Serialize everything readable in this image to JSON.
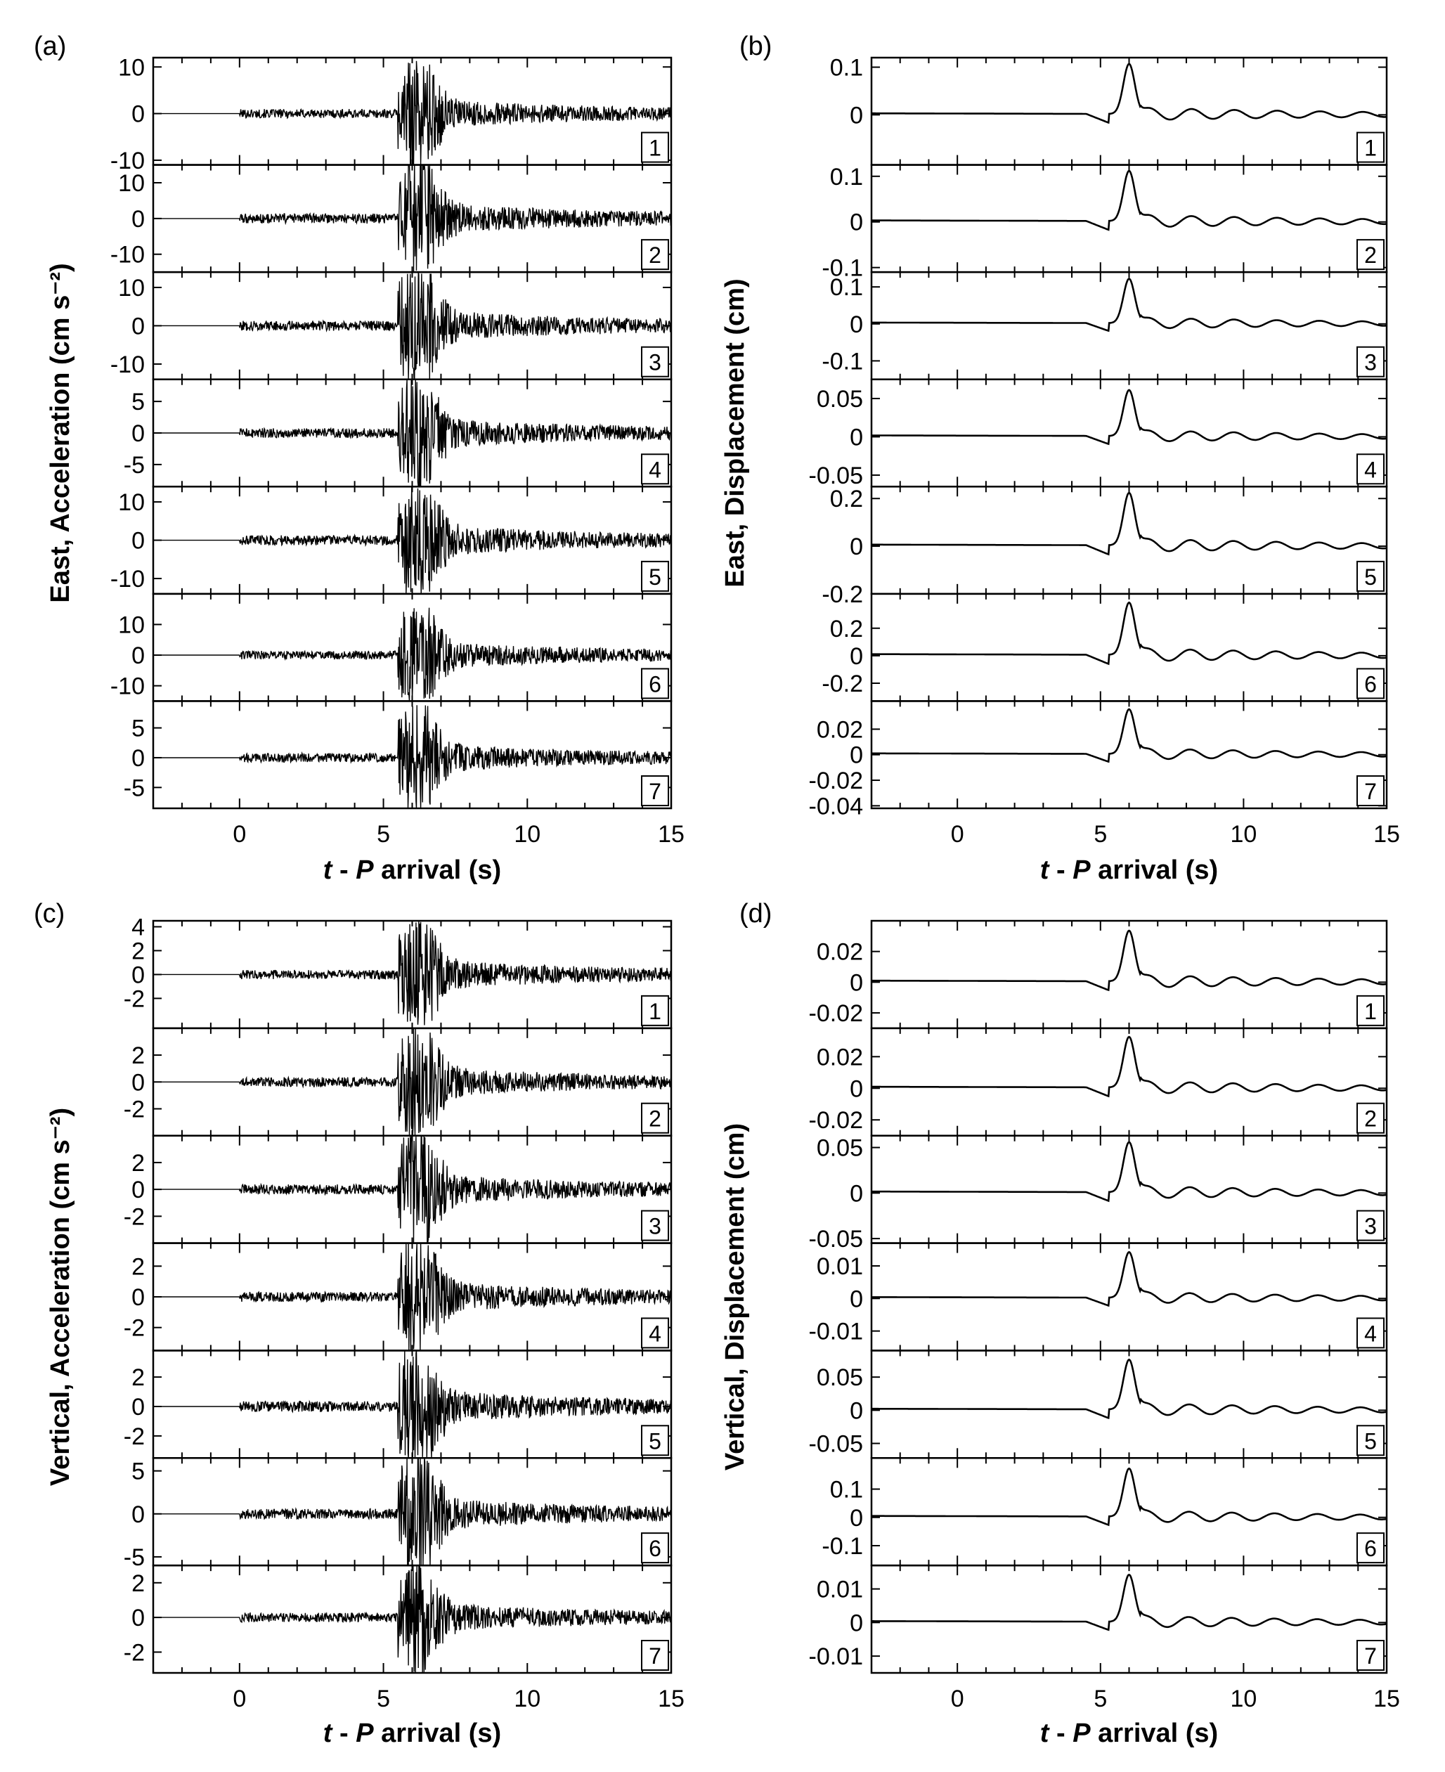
{
  "chart_data": [
    {
      "panel_label": "(a)",
      "type": "line",
      "xlabel_prefix": "t",
      "xlabel_mid": " - ",
      "xlabel_var": "P",
      "xlabel_suffix": " arrival (s)",
      "ylabel": "East, Acceleration (cm s⁻²)",
      "xlim": [
        -3,
        15
      ],
      "xticks": [
        0,
        5,
        10,
        15
      ],
      "onset": 0,
      "kind": "acc",
      "traces": [
        {
          "id": "1",
          "ylim": [
            -11,
            12
          ],
          "yticks": [
            10,
            0,
            -10
          ],
          "ytick_labels": [
            "10",
            "0",
            "-10"
          ],
          "peak": 9
        },
        {
          "id": "2",
          "ylim": [
            -15,
            15
          ],
          "yticks": [
            10,
            0,
            -10
          ],
          "ytick_labels": [
            "10",
            "0",
            "-10"
          ],
          "peak": 13
        },
        {
          "id": "3",
          "ylim": [
            -14,
            14
          ],
          "yticks": [
            10,
            0,
            -10
          ],
          "ytick_labels": [
            "10",
            "0",
            "-10"
          ],
          "peak": 12
        },
        {
          "id": "4",
          "ylim": [
            -8.5,
            8.5
          ],
          "yticks": [
            5,
            0,
            -5
          ],
          "ytick_labels": [
            "5",
            "0",
            "-5"
          ],
          "peak": 7
        },
        {
          "id": "5",
          "ylim": [
            -14,
            14
          ],
          "yticks": [
            10,
            0,
            -10
          ],
          "ytick_labels": [
            "10",
            "0",
            "-10"
          ],
          "peak": 12
        },
        {
          "id": "6",
          "ylim": [
            -15,
            20
          ],
          "yticks": [
            10,
            0,
            -10
          ],
          "ytick_labels": [
            "10",
            "0",
            "-10"
          ],
          "peak": 13
        },
        {
          "id": "7",
          "ylim": [
            -8.5,
            9.5
          ],
          "yticks": [
            5,
            0,
            -5
          ],
          "ytick_labels": [
            "5",
            "0",
            "-5"
          ],
          "peak": 7
        }
      ]
    },
    {
      "panel_label": "(b)",
      "type": "line",
      "xlabel_prefix": "t",
      "xlabel_mid": " - ",
      "xlabel_var": "P",
      "xlabel_suffix": " arrival (s)",
      "ylabel": "East, Displacement (cm)",
      "xlim": [
        -3,
        15
      ],
      "xticks": [
        0,
        5,
        10,
        15
      ],
      "onset": 5.3,
      "kind": "disp",
      "traces": [
        {
          "id": "1",
          "ylim": [
            -0.105,
            0.12
          ],
          "yticks": [
            0.1,
            0
          ],
          "ytick_labels": [
            "0.1",
            "0"
          ],
          "peak": 0.105
        },
        {
          "id": "2",
          "ylim": [
            -0.11,
            0.125
          ],
          "yticks": [
            0.1,
            0,
            -0.1
          ],
          "ytick_labels": [
            "0.1",
            "0",
            "-0.1"
          ],
          "peak": 0.11
        },
        {
          "id": "3",
          "ylim": [
            -0.15,
            0.14
          ],
          "yticks": [
            0.1,
            0,
            -0.1
          ],
          "ytick_labels": [
            "0.1",
            "0",
            "-0.1"
          ],
          "peak": 0.12
        },
        {
          "id": "4",
          "ylim": [
            -0.065,
            0.075
          ],
          "yticks": [
            0.05,
            0,
            -0.05
          ],
          "ytick_labels": [
            "0.05",
            "0",
            "-0.05"
          ],
          "peak": 0.06
        },
        {
          "id": "5",
          "ylim": [
            -0.2,
            0.25
          ],
          "yticks": [
            0.2,
            0,
            -0.2
          ],
          "ytick_labels": [
            "0.2",
            "0",
            "-0.2"
          ],
          "peak": 0.22
        },
        {
          "id": "6",
          "ylim": [
            -0.33,
            0.45
          ],
          "yticks": [
            0.2,
            0,
            -0.2
          ],
          "ytick_labels": [
            "0.2",
            "0",
            "-0.2"
          ],
          "peak": 0.38
        },
        {
          "id": "7",
          "ylim": [
            -0.042,
            0.042
          ],
          "yticks": [
            0.02,
            0,
            -0.02,
            -0.04
          ],
          "ytick_labels": [
            "0.02",
            "0",
            "-0.02",
            "-0.04"
          ],
          "peak": 0.035
        }
      ]
    },
    {
      "panel_label": "(c)",
      "type": "line",
      "xlabel_prefix": "t",
      "xlabel_mid": " - ",
      "xlabel_var": "P",
      "xlabel_suffix": " arrival (s)",
      "ylabel": "Vertical, Acceleration (cm s⁻²)",
      "xlim": [
        -3,
        15
      ],
      "xticks": [
        0,
        5,
        10,
        15
      ],
      "onset": 0,
      "kind": "acc",
      "traces": [
        {
          "id": "1",
          "ylim": [
            -4.5,
            4.5
          ],
          "yticks": [
            4,
            2,
            0,
            -2
          ],
          "ytick_labels": [
            "4",
            "2",
            "0",
            "-2"
          ],
          "peak": 3.6
        },
        {
          "id": "2",
          "ylim": [
            -4,
            4
          ],
          "yticks": [
            2,
            0,
            -2
          ],
          "ytick_labels": [
            "2",
            "0",
            "-2"
          ],
          "peak": 3.3
        },
        {
          "id": "3",
          "ylim": [
            -4,
            4
          ],
          "yticks": [
            2,
            0,
            -2
          ],
          "ytick_labels": [
            "2",
            "0",
            "-2"
          ],
          "peak": 3.4
        },
        {
          "id": "4",
          "ylim": [
            -3.5,
            3.5
          ],
          "yticks": [
            2,
            0,
            -2
          ],
          "ytick_labels": [
            "2",
            "0",
            "-2"
          ],
          "peak": 3.0
        },
        {
          "id": "5",
          "ylim": [
            -3.5,
            3.8
          ],
          "yticks": [
            2,
            0,
            -2
          ],
          "ytick_labels": [
            "2",
            "0",
            "-2"
          ],
          "peak": 3.3
        },
        {
          "id": "6",
          "ylim": [
            -6,
            6.5
          ],
          "yticks": [
            5,
            0,
            -5
          ],
          "ytick_labels": [
            "5",
            "0",
            "-5"
          ],
          "peak": 5.5
        },
        {
          "id": "7",
          "ylim": [
            -3.2,
            3.0
          ],
          "yticks": [
            2,
            0,
            -2
          ],
          "ytick_labels": [
            "2",
            "0",
            "-2"
          ],
          "peak": 2.5
        }
      ]
    },
    {
      "panel_label": "(d)",
      "type": "line",
      "xlabel_prefix": "t",
      "xlabel_mid": " - ",
      "xlabel_var": "P",
      "xlabel_suffix": " arrival (s)",
      "ylabel": "Vertical, Displacement (cm)",
      "xlim": [
        -3,
        15
      ],
      "xticks": [
        0,
        5,
        10,
        15
      ],
      "onset": 5.3,
      "kind": "disp",
      "traces": [
        {
          "id": "1",
          "ylim": [
            -0.03,
            0.04
          ],
          "yticks": [
            0.02,
            0,
            -0.02
          ],
          "ytick_labels": [
            "0.02",
            "0",
            "-0.02"
          ],
          "peak": 0.033
        },
        {
          "id": "2",
          "ylim": [
            -0.03,
            0.038
          ],
          "yticks": [
            0.02,
            0,
            -0.02
          ],
          "ytick_labels": [
            "0.02",
            "0",
            "-0.02"
          ],
          "peak": 0.032
        },
        {
          "id": "3",
          "ylim": [
            -0.055,
            0.063
          ],
          "yticks": [
            0.05,
            0,
            -0.05
          ],
          "ytick_labels": [
            "0.05",
            "0",
            "-0.05"
          ],
          "peak": 0.055
        },
        {
          "id": "4",
          "ylim": [
            -0.016,
            0.017
          ],
          "yticks": [
            0.01,
            0,
            -0.01
          ],
          "ytick_labels": [
            "0.01",
            "0",
            "-0.01"
          ],
          "peak": 0.014
        },
        {
          "id": "5",
          "ylim": [
            -0.072,
            0.09
          ],
          "yticks": [
            0.05,
            0,
            -0.05
          ],
          "ytick_labels": [
            "0.05",
            "0",
            "-0.05"
          ],
          "peak": 0.075
        },
        {
          "id": "6",
          "ylim": [
            -0.17,
            0.21
          ],
          "yticks": [
            0.1,
            0,
            -0.1
          ],
          "ytick_labels": [
            "0.1",
            "0",
            "-0.1"
          ],
          "peak": 0.17
        },
        {
          "id": "7",
          "ylim": [
            -0.015,
            0.017
          ],
          "yticks": [
            0.01,
            0,
            -0.01
          ],
          "ytick_labels": [
            "0.01",
            "0",
            "-0.01"
          ],
          "peak": 0.014
        }
      ]
    }
  ]
}
